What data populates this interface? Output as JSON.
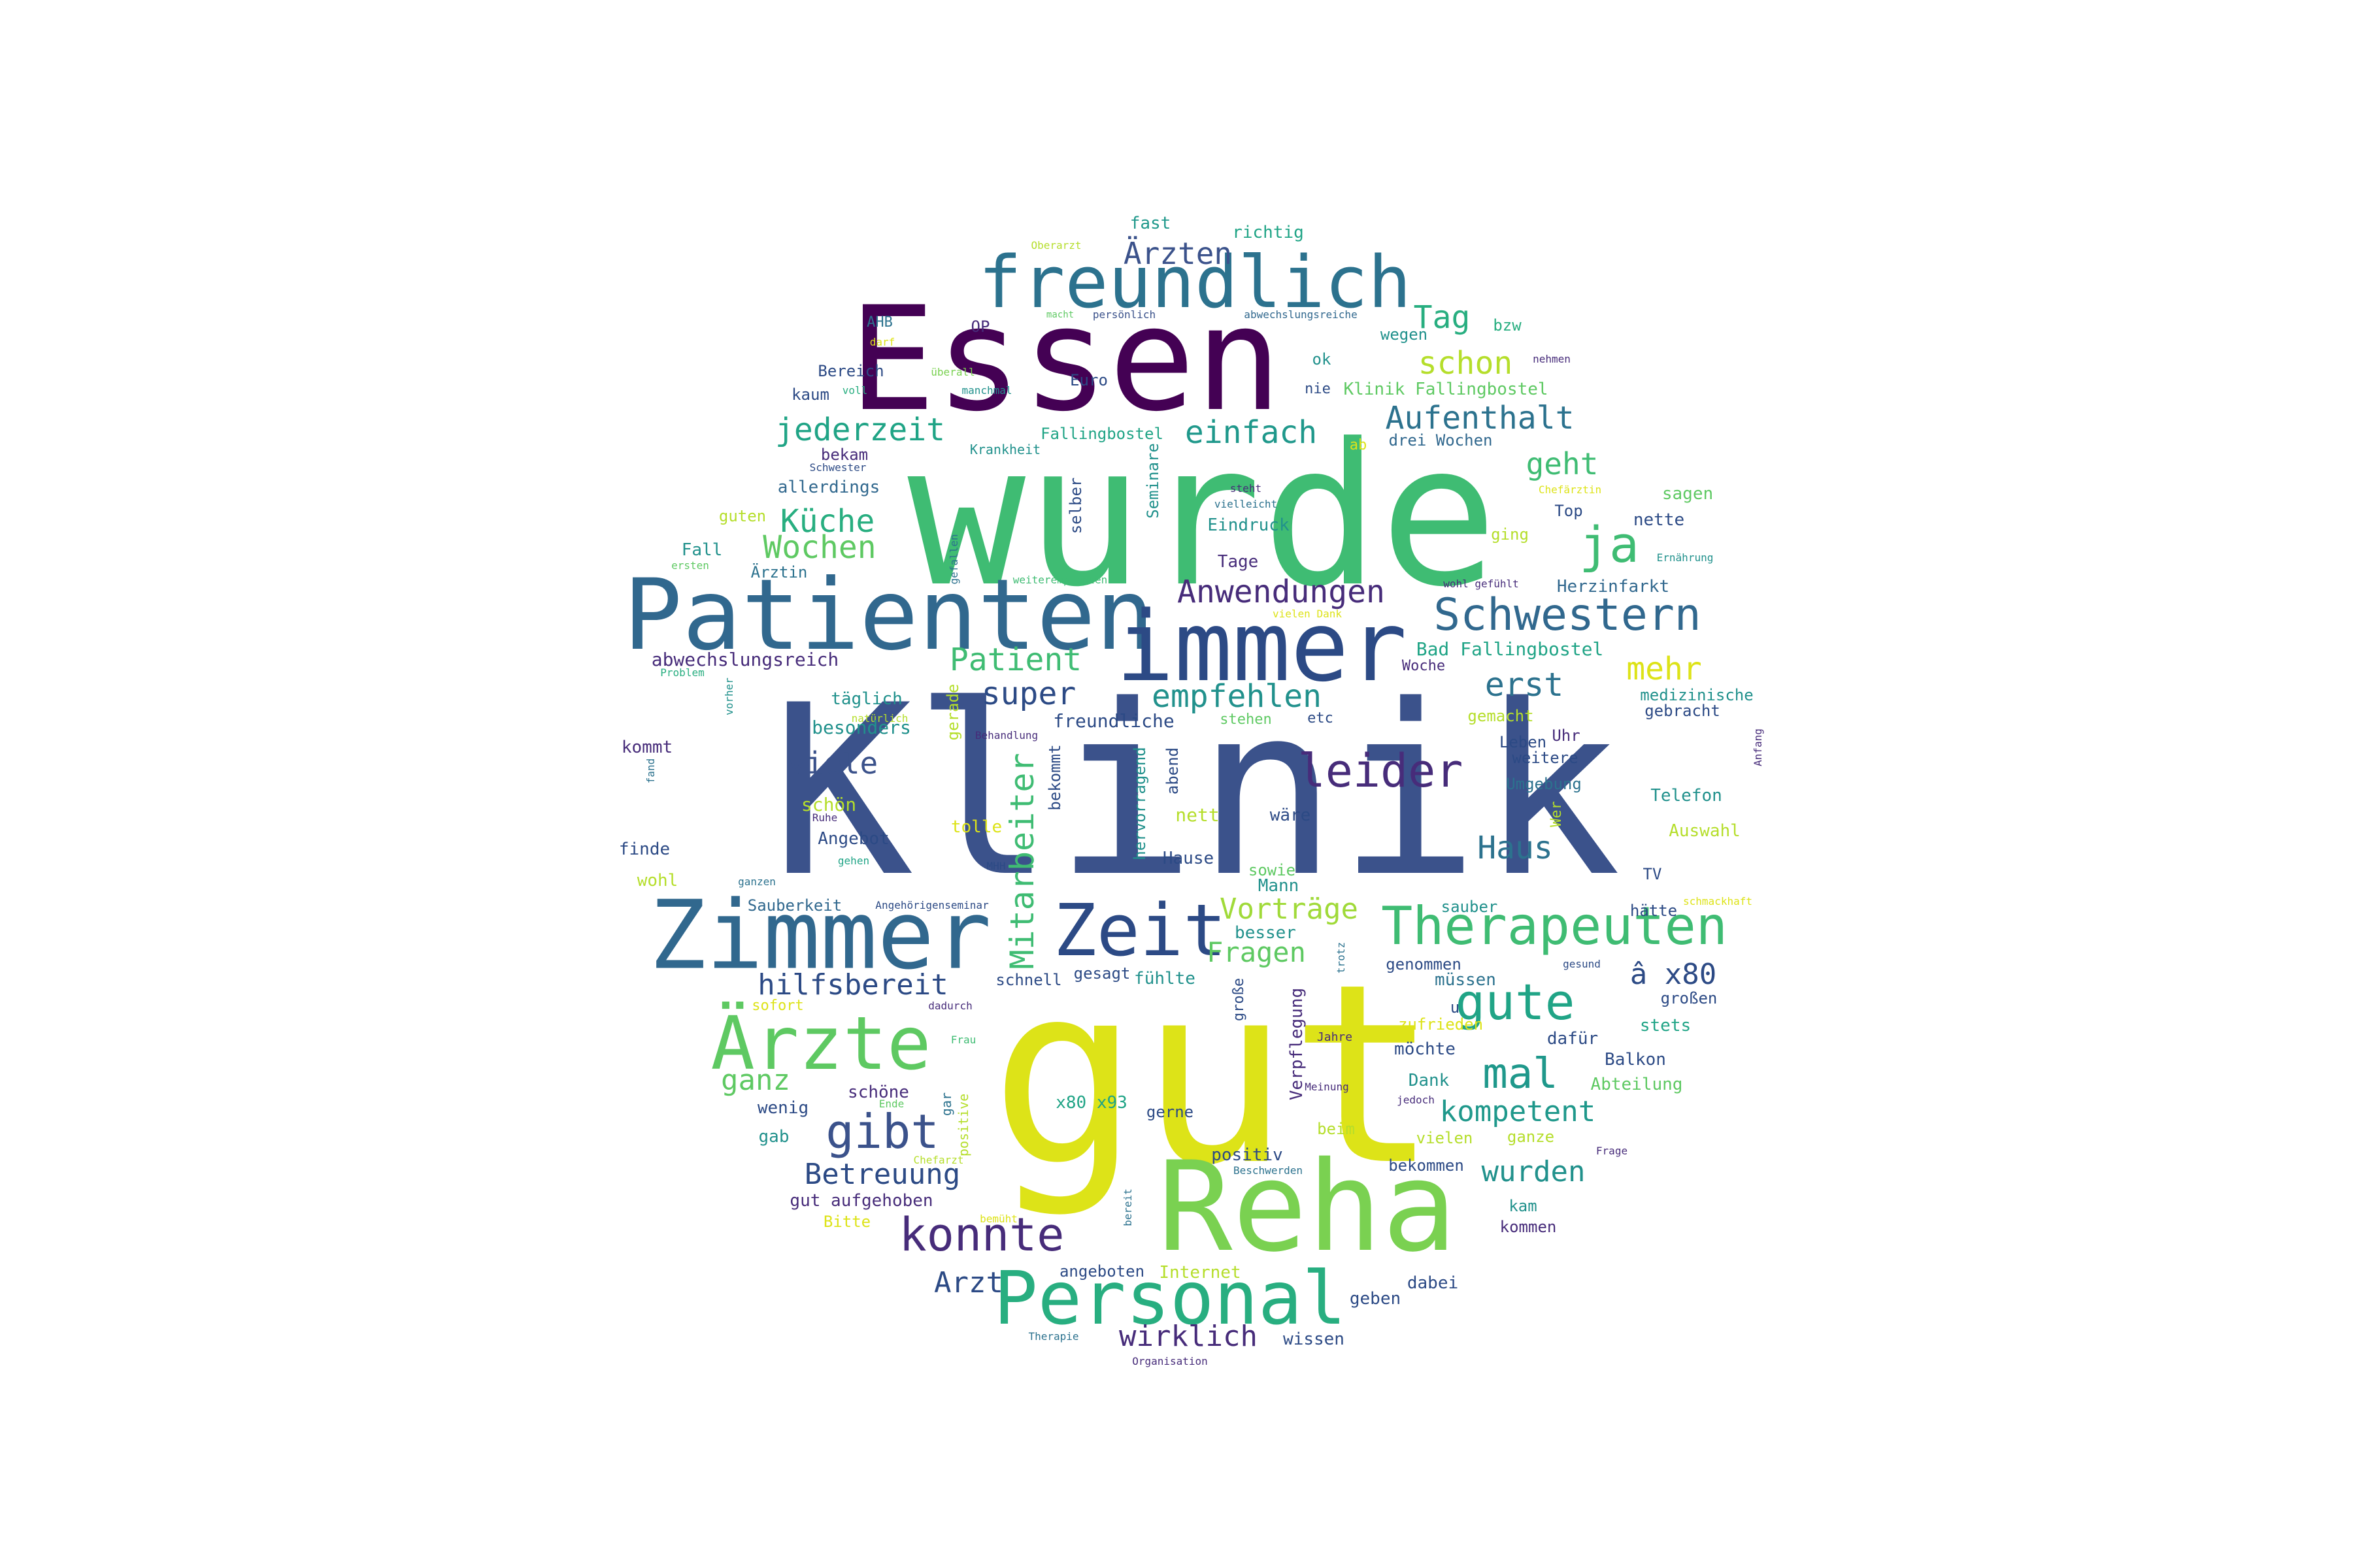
{
  "palette": {
    "dark_purple": "#440154",
    "purple": "#472c7a",
    "indigo": "#3b528b",
    "blue": "#2c728e",
    "teal": "#21918c",
    "green_teal": "#28ae80",
    "green": "#5ec962",
    "lime": "#addc30",
    "yellow": "#dde318"
  },
  "words": [
    "Klinik",
    "gut",
    "wurde",
    "Essen",
    "Reha",
    "Patienten",
    "immer",
    "Zimmer",
    "Personal",
    "freundlich",
    "Ärzte",
    "Zeit",
    "Therapeuten",
    "Schwestern",
    "konnte",
    "gibt",
    "gute",
    "leider",
    "Mitarbeiter",
    "ja",
    "mal",
    "Anwendungen",
    "Aufenthalt",
    "Ärzten",
    "schon",
    "einfach",
    "jederzeit",
    "Tag",
    "Küche",
    "Wochen",
    "Patient",
    "super",
    "empfehlen",
    "erst",
    "mehr",
    "viele",
    "Haus",
    "Vorträge",
    "Fragen",
    "hilfsbereit",
    "kompetent",
    "wurden",
    "Betreuung",
    "ganz",
    "Arzt",
    "wirklich",
    "geht",
    "â x80",
    "Wochen"
  ],
  "small_words": [
    "fast",
    "richtig",
    "Oberarzt",
    "macht",
    "persönlich",
    "abwechslungsreiche",
    "AHB",
    "OP",
    "wegen",
    "bzw",
    "darf",
    "überall",
    "ok",
    "nehmen",
    "Bereich",
    "Euro",
    "nie",
    "Klinik Fallingbostel",
    "kaum",
    "voll",
    "manchmal",
    "drei Wochen",
    "Fallingbostel",
    "ab",
    "bekam",
    "Krankheit",
    "Schwester",
    "allerdings",
    "Seminare",
    "steht",
    "vielleicht",
    "Chefärztin",
    "sagen",
    "guten",
    "selber",
    "Top",
    "nette",
    "Eindruck",
    "ging",
    "Fall",
    "gefallen",
    "ersten",
    "Tage",
    "Ernährung",
    "Ärztin",
    "weiterempfehlen",
    "wohl gefühlt",
    "Herzinfarkt",
    "vielen Dank",
    "Bad Fallingbostel",
    "abwechslungsreich",
    "Woche",
    "Problem",
    "vorher",
    "täglich",
    "gerade",
    "freundliche",
    "medizinische",
    "gemacht",
    "gebracht",
    "natürlich",
    "Behandlung",
    "stehen",
    "etc",
    "besonders",
    "kommt",
    "bekommt",
    "hervorragend",
    "abend",
    "Leben",
    "Uhr",
    "Anfang",
    "weitere",
    "Umgebung",
    "fand",
    "schön",
    "Ruhe",
    "nett",
    "wäre",
    "Telefon",
    "Angebot",
    "tolle",
    "Wer",
    "finde",
    "gehen",
    "Hause",
    "Auswahl",
    "wohl",
    "MHH",
    "sowie",
    "Mann",
    "TV",
    "ganzen",
    "Sauberkeit",
    "Angehörigenseminar",
    "sauber",
    "hätte",
    "schmackhaft",
    "besser",
    "trotz",
    "genommen",
    "gesund",
    "sofort",
    "dadurch",
    "schnell",
    "gesagt",
    "fühlte",
    "müssen",
    "großen",
    "u",
    "große",
    "zufrieden",
    "stets",
    "Frau",
    "Jahre",
    "möchte",
    "dafür",
    "Balkon",
    "Verpflegung",
    "schöne",
    "gar",
    "Meinung",
    "Dank",
    "Abteilung",
    "wenig",
    "Ende",
    "x80 x93",
    "gerne",
    "jedoch",
    "gab",
    "positive",
    "beim",
    "vielen",
    "ganze",
    "Frage",
    "Chefarzt",
    "positiv",
    "bekommen",
    "Beschwerden",
    "gut aufgehoben",
    "kam",
    "Bitte",
    "bemüht",
    "bereit",
    "kommen",
    "angeboten",
    "Internet",
    "dabei",
    "geben",
    "Therapie",
    "Organisation",
    "wissen"
  ]
}
